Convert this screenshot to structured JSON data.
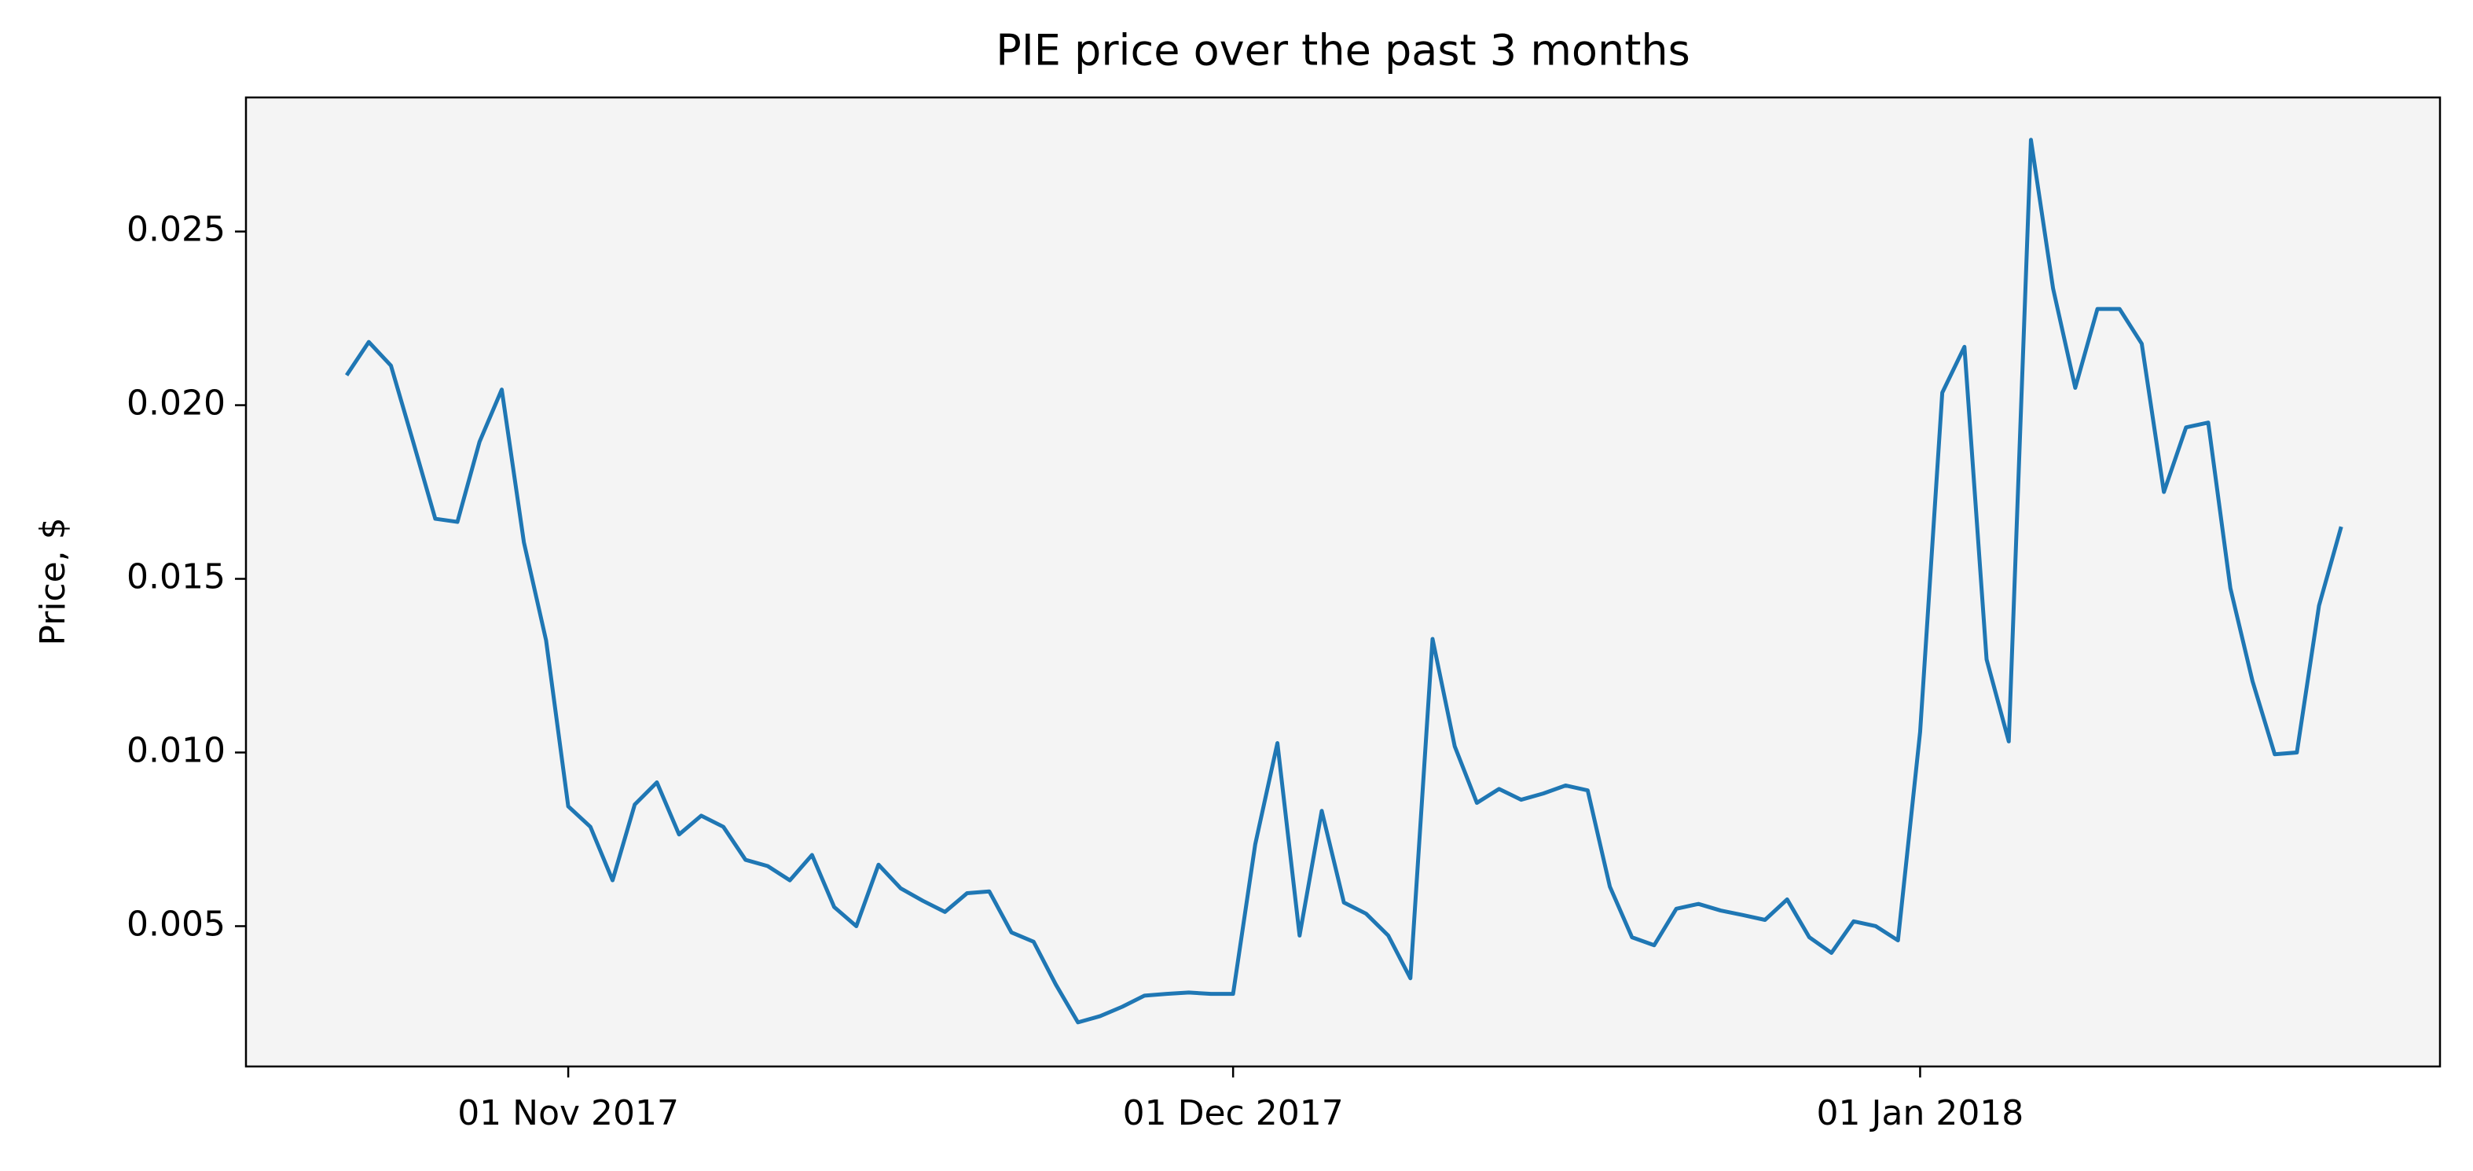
{
  "chart_data": {
    "type": "line",
    "title": "PIE price over the past 3 months",
    "ylabel": "Price, $",
    "x": [
      "2017-10-22",
      "2017-10-23",
      "2017-10-24",
      "2017-10-25",
      "2017-10-26",
      "2017-10-27",
      "2017-10-28",
      "2017-10-29",
      "2017-10-30",
      "2017-10-31",
      "2017-11-01",
      "2017-11-02",
      "2017-11-03",
      "2017-11-04",
      "2017-11-05",
      "2017-11-06",
      "2017-11-07",
      "2017-11-08",
      "2017-11-09",
      "2017-11-10",
      "2017-11-11",
      "2017-11-12",
      "2017-11-13",
      "2017-11-14",
      "2017-11-15",
      "2017-11-16",
      "2017-11-17",
      "2017-11-18",
      "2017-11-19",
      "2017-11-20",
      "2017-11-21",
      "2017-11-22",
      "2017-11-23",
      "2017-11-24",
      "2017-11-25",
      "2017-11-26",
      "2017-11-27",
      "2017-11-28",
      "2017-11-29",
      "2017-11-30",
      "2017-12-01",
      "2017-12-02",
      "2017-12-03",
      "2017-12-04",
      "2017-12-05",
      "2017-12-06",
      "2017-12-07",
      "2017-12-08",
      "2017-12-09",
      "2017-12-10",
      "2017-12-11",
      "2017-12-12",
      "2017-12-13",
      "2017-12-14",
      "2017-12-15",
      "2017-12-16",
      "2017-12-17",
      "2017-12-18",
      "2017-12-19",
      "2017-12-20",
      "2017-12-21",
      "2017-12-22",
      "2017-12-23",
      "2017-12-24",
      "2017-12-25",
      "2017-12-26",
      "2017-12-27",
      "2017-12-28",
      "2017-12-29",
      "2017-12-30",
      "2017-12-31",
      "2018-01-01",
      "2018-01-02",
      "2018-01-03",
      "2018-01-04",
      "2018-01-05",
      "2018-01-06",
      "2018-01-07",
      "2018-01-08",
      "2018-01-09",
      "2018-01-10",
      "2018-01-11",
      "2018-01-12",
      "2018-01-13",
      "2018-01-14",
      "2018-01-15",
      "2018-01-16",
      "2018-01-17",
      "2018-01-18",
      "2018-01-19",
      "2018-01-20"
    ],
    "series": [
      {
        "name": "PIE",
        "color": "#1f77b4",
        "values": [
          0.02086,
          0.02182,
          0.02114,
          0.01895,
          0.01673,
          0.01664,
          0.01895,
          0.02045,
          0.01605,
          0.01323,
          0.00845,
          0.00786,
          0.00632,
          0.0085,
          0.00914,
          0.00764,
          0.00818,
          0.00786,
          0.00691,
          0.00673,
          0.00632,
          0.00705,
          0.00555,
          0.005,
          0.00677,
          0.00609,
          0.00573,
          0.00541,
          0.00595,
          0.006,
          0.00482,
          0.00455,
          0.00332,
          0.00223,
          0.00241,
          0.00268,
          0.003,
          0.00305,
          0.00309,
          0.00305,
          0.00305,
          0.00736,
          0.01027,
          0.00473,
          0.00832,
          0.00568,
          0.00536,
          0.00473,
          0.0035,
          0.01327,
          0.01018,
          0.00855,
          0.00895,
          0.00864,
          0.00882,
          0.00905,
          0.00891,
          0.00614,
          0.00468,
          0.00445,
          0.0055,
          0.00564,
          0.00545,
          0.00532,
          0.00518,
          0.00577,
          0.00468,
          0.00423,
          0.00514,
          0.005,
          0.00459,
          0.01059,
          0.02036,
          0.02168,
          0.01268,
          0.01032,
          0.02764,
          0.02336,
          0.0205,
          0.02277,
          0.02277,
          0.02177,
          0.0175,
          0.01936,
          0.0195,
          0.01473,
          0.01205,
          0.00995,
          0.01,
          0.01423,
          0.0165
        ]
      }
    ],
    "xlim": [
      "2017-10-17T11:00Z",
      "2018-01-24T11:00Z"
    ],
    "xticks": [
      {
        "value": "2017-11-01",
        "label": "01 Nov 2017"
      },
      {
        "value": "2017-12-01",
        "label": "01 Dec 2017"
      },
      {
        "value": "2018-01-01",
        "label": "01 Jan 2018"
      }
    ],
    "ylim": [
      0.00096,
      0.02886
    ],
    "yticks": [
      0.005,
      {
        "value": 0.01,
        "label": "0.010"
      },
      0.015,
      {
        "value": 0.02,
        "label": "0.020"
      },
      0.025
    ],
    "background": "#f4f4f4"
  }
}
